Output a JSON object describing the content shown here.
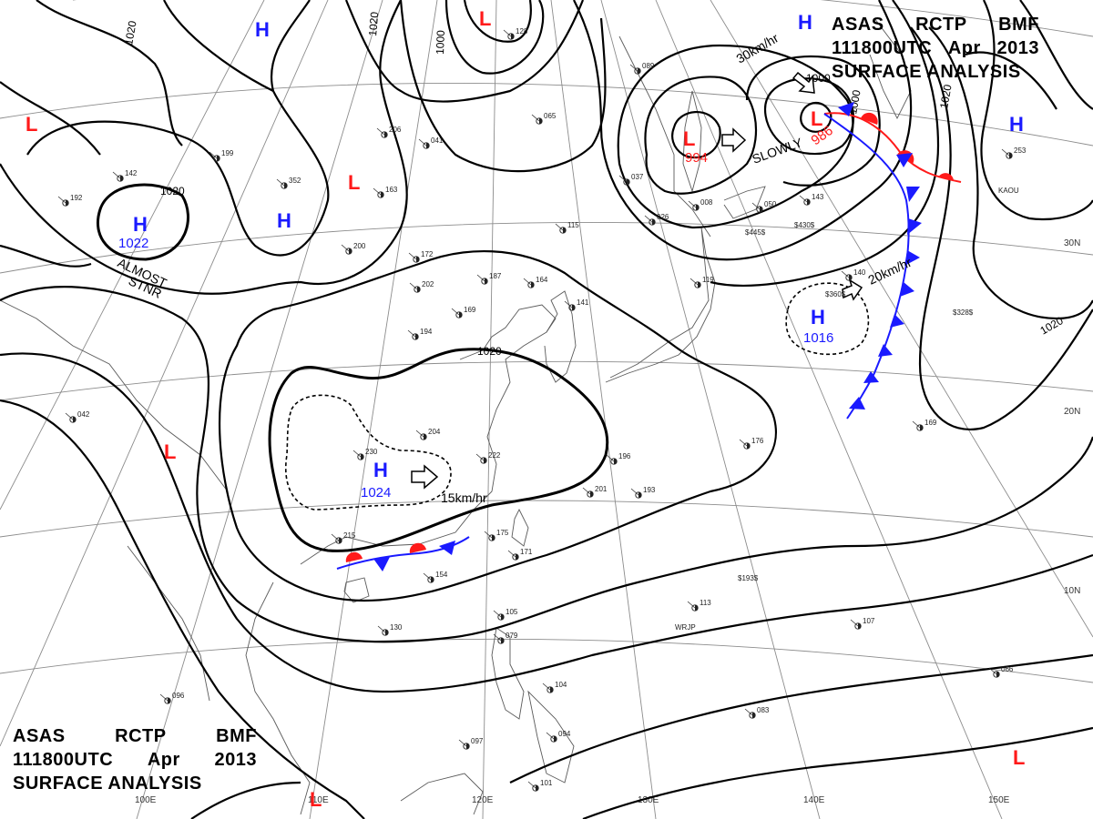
{
  "titles": {
    "top": {
      "agency": "ASAS",
      "station": "RCTP",
      "code": "BMF",
      "datetime": "111800UTC",
      "month": "Apr",
      "year": "2013",
      "subtitle": "SURFACE ANALYSIS"
    },
    "bottom": {
      "agency": "ASAS",
      "station": "RCTP",
      "code": "BMF",
      "datetime": "111800UTC",
      "month": "Apr",
      "year": "2013",
      "subtitle": "SURFACE ANALYSIS"
    }
  },
  "pressure_systems": {
    "high_mongolia": {
      "symbol": "H",
      "value": "1022"
    },
    "high_china": {
      "symbol": "H",
      "value": "1024"
    },
    "high_pacific": {
      "symbol": "H",
      "value": "1016"
    },
    "high_north": {
      "symbol": "H"
    },
    "high_siberia": {
      "symbol": "H"
    },
    "high_northeast": {
      "symbol": "H"
    },
    "high_far_east": {
      "symbol": "H"
    },
    "low_japan_sea": {
      "symbol": "L",
      "value": "994"
    },
    "low_hokkaido": {
      "symbol": "L",
      "value": "986"
    },
    "low_north": {
      "symbol": "L"
    },
    "low_central": {
      "symbol": "L"
    },
    "low_west": {
      "symbol": "L"
    },
    "low_india": {
      "symbol": "L"
    },
    "low_south": {
      "symbol": "L"
    },
    "low_southeast": {
      "symbol": "L"
    }
  },
  "isobar_labels": {
    "a": "1020",
    "b": "1020",
    "c": "1000",
    "d": "1020",
    "e": "1020",
    "f": "1000",
    "g": "1000",
    "h": "1020",
    "i": "1020"
  },
  "annotations": {
    "motion_china": "15km/hr",
    "motion_pacific": "20km/hr",
    "motion_north": "30km/hr",
    "slowly": "SLOWLY",
    "almost": "ALMOST",
    "stnr": "STNR"
  },
  "grid_labels": {
    "lat_30n": "30N",
    "lat_20n": "20N",
    "lat_10n": "10N",
    "lon_110e": "110E",
    "lon_120e": "120E",
    "lon_130e": "130E",
    "lon_140e": "140E",
    "lon_150e": "150E",
    "lon_100e": "100E"
  },
  "station_plots": [
    {
      "id": "s1",
      "text": "206"
    },
    {
      "id": "s2",
      "text": "163"
    },
    {
      "id": "s3",
      "text": "352"
    },
    {
      "id": "s4",
      "text": "199"
    },
    {
      "id": "s5",
      "text": "164"
    },
    {
      "id": "s6",
      "text": "172"
    },
    {
      "id": "s7",
      "text": "187"
    },
    {
      "id": "s8",
      "text": "169"
    },
    {
      "id": "s9",
      "text": "194"
    },
    {
      "id": "s10",
      "text": "202"
    },
    {
      "id": "s11",
      "text": "115"
    },
    {
      "id": "s12",
      "text": "204"
    },
    {
      "id": "s13",
      "text": "230"
    },
    {
      "id": "s14",
      "text": "222"
    },
    {
      "id": "s15",
      "text": "196"
    },
    {
      "id": "s16",
      "text": "201"
    },
    {
      "id": "s17",
      "text": "193"
    },
    {
      "id": "s18",
      "text": "176"
    },
    {
      "id": "s19",
      "text": "175"
    },
    {
      "id": "s20",
      "text": "171"
    },
    {
      "id": "s21",
      "text": "215"
    },
    {
      "id": "s22",
      "text": "154"
    },
    {
      "id": "s23",
      "text": "130"
    },
    {
      "id": "s24",
      "text": "113"
    },
    {
      "id": "s25",
      "text": "105"
    },
    {
      "id": "s26",
      "text": "079"
    },
    {
      "id": "s27",
      "text": "096"
    },
    {
      "id": "s28",
      "text": "097"
    },
    {
      "id": "s29",
      "text": "094"
    },
    {
      "id": "s30",
      "text": "101"
    },
    {
      "id": "s31",
      "text": "083"
    },
    {
      "id": "s32",
      "text": "107"
    },
    {
      "id": "s33",
      "text": "066"
    },
    {
      "id": "s34",
      "text": "140"
    },
    {
      "id": "s35",
      "text": "169"
    },
    {
      "id": "s36",
      "text": "253"
    },
    {
      "id": "s37",
      "text": "042"
    },
    {
      "id": "s38",
      "text": "192"
    },
    {
      "id": "s39",
      "text": "142"
    },
    {
      "id": "s40",
      "text": "200"
    },
    {
      "id": "s41",
      "text": "141"
    },
    {
      "id": "s42",
      "text": "065"
    },
    {
      "id": "s43",
      "text": "041"
    },
    {
      "id": "s44",
      "text": "128"
    },
    {
      "id": "s45",
      "text": "089"
    },
    {
      "id": "s46",
      "text": "037"
    },
    {
      "id": "s47",
      "text": "026"
    },
    {
      "id": "s48",
      "text": "008"
    },
    {
      "id": "s49",
      "text": "050"
    },
    {
      "id": "s50",
      "text": "143"
    },
    {
      "id": "s51",
      "text": "119"
    },
    {
      "id": "s52",
      "text": "104"
    }
  ],
  "ship_labels": {
    "kaou": "KAOU",
    "wrjp": "WRJP",
    "s430": "$430$",
    "s328": "$328$",
    "s193": "$193$",
    "s360": "$360$",
    "s445": "$445$"
  },
  "colors": {
    "high": "#1a1aff",
    "low": "#ff1a1a",
    "cold_front": "#1a1aff",
    "warm_front": "#ff1a1a",
    "isobar": "#000000",
    "grid": "#888888",
    "coast": "#555555"
  }
}
